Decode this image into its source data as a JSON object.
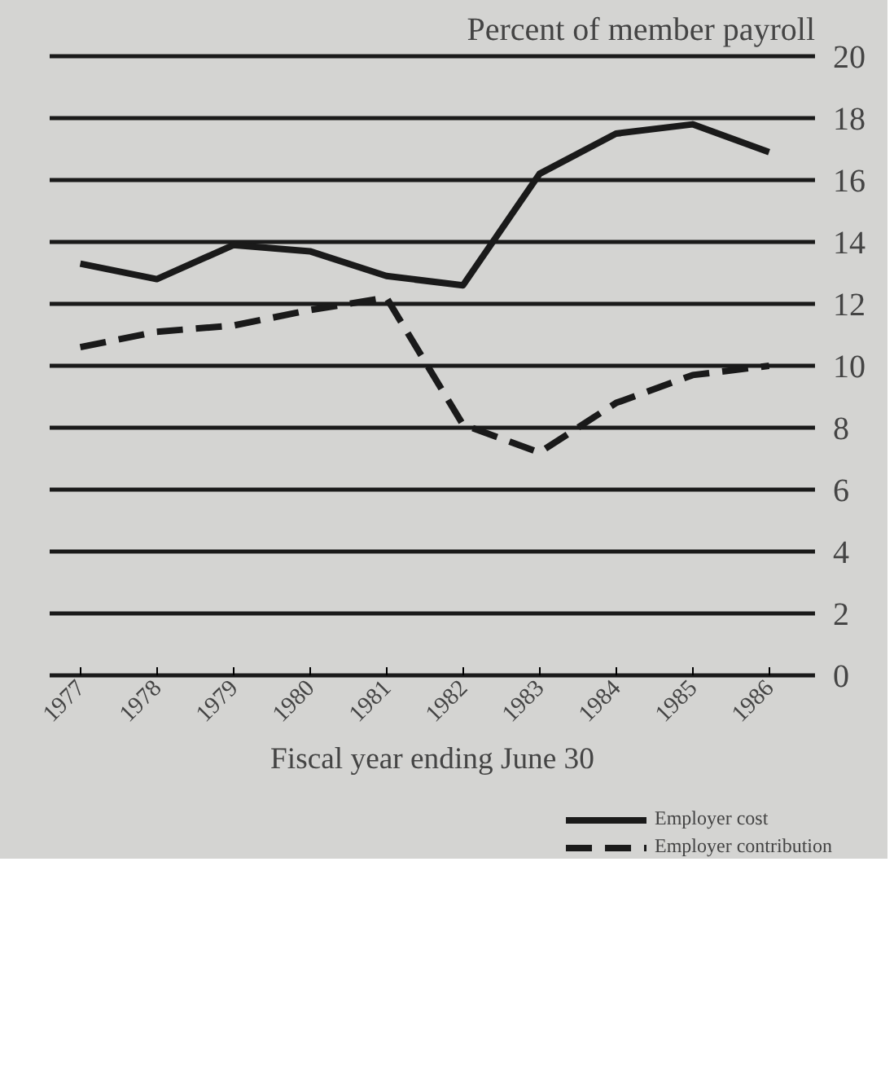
{
  "chart_data": {
    "type": "line",
    "ylabel": "Percent of member payroll",
    "xlabel": "Fiscal year ending June 30",
    "categories": [
      "1977",
      "1978",
      "1979",
      "1980",
      "1981",
      "1982",
      "1983",
      "1984",
      "1985",
      "1986"
    ],
    "series": [
      {
        "name": "Employer cost",
        "color": "#1a1a1a",
        "line_style": "solid",
        "values": [
          13.3,
          12.8,
          13.9,
          13.7,
          12.9,
          12.6,
          16.2,
          17.5,
          17.8,
          16.9
        ]
      },
      {
        "name": "Employer contribution",
        "color": "#1a1a1a",
        "line_style": "dashed",
        "values": [
          10.6,
          11.1,
          11.3,
          11.8,
          12.2,
          8.1,
          7.2,
          8.8,
          9.7,
          10.0
        ]
      }
    ],
    "ylim": [
      0,
      20
    ],
    "yticks": [
      0,
      2,
      4,
      6,
      8,
      10,
      12,
      14,
      16,
      18,
      20
    ],
    "grid": "y",
    "legend": "bottom right",
    "marker": "none"
  }
}
